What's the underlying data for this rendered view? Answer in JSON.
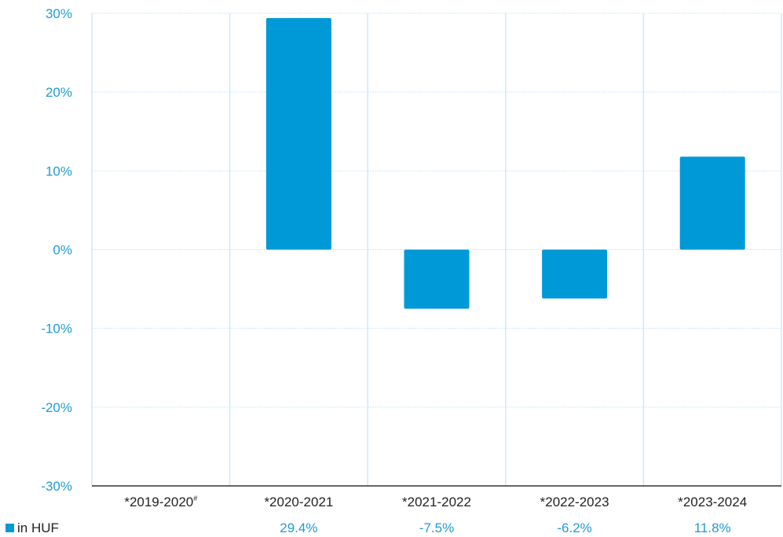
{
  "chart_data": {
    "type": "bar",
    "categories": [
      "*2019-2020",
      "*2020-2021",
      "*2021-2022",
      "*2022-2023",
      "*2023-2024"
    ],
    "category_superscripts": [
      "#",
      "",
      "",
      "",
      ""
    ],
    "series": [
      {
        "name": "in HUF",
        "values": [
          null,
          29.4,
          -7.5,
          -6.2,
          11.8
        ],
        "color": "#0099d8"
      }
    ],
    "value_labels": [
      "",
      "29.4%",
      "-7.5%",
      "-6.2%",
      "11.8%"
    ],
    "ylim": [
      -30,
      30
    ],
    "yticks": [
      30,
      20,
      10,
      0,
      -10,
      -20,
      -30
    ],
    "ytick_labels": [
      "30%",
      "20%",
      "10%",
      "0%",
      "-10%",
      "-20%",
      "-30%"
    ],
    "grid": true,
    "legend": {
      "placement": "bottom-left",
      "label": "in HUF"
    },
    "colors": {
      "bar": "#0099d8",
      "tick_text": "#1f9bd7",
      "grid": "#cfe9f7",
      "axis": "#333333",
      "category_text": "#222222"
    }
  }
}
